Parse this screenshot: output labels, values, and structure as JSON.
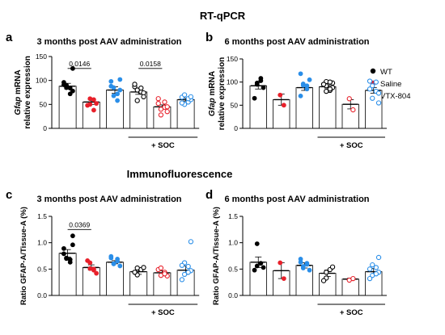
{
  "figure": {
    "title": "RT-qPCR",
    "section2_title": "Immunofluorescence",
    "legend": [
      {
        "label": "WT",
        "color": "#000000"
      },
      {
        "label": "Saline",
        "color": "#e8202a"
      },
      {
        "label": "VTX-804",
        "color": "#2a8ee8"
      }
    ],
    "soc_label": "+ SOC"
  },
  "chart_data": [
    {
      "panel": "a",
      "type": "bar",
      "title": "3 months post AAV administration",
      "ylabel_italic": "Gfap",
      "ylabel_rest": " mRNA",
      "ylabel_line2": "relative expression",
      "ylim": [
        0,
        150
      ],
      "yticks": [
        0,
        50,
        100,
        150
      ],
      "ytick_labels": [
        "0",
        "50",
        "100",
        "150"
      ],
      "annotations": [
        {
          "text": "0.0146",
          "from": 0,
          "to": 1,
          "y": 125
        },
        {
          "text": "0.0158",
          "from": 3,
          "to": 4,
          "y": 125
        }
      ],
      "bars": [
        {
          "mean": 88,
          "sem": 6,
          "group": "WT",
          "fill": false,
          "points": [
            85,
            84,
            96,
            78,
            90,
            72,
            91,
            125
          ]
        },
        {
          "mean": 55,
          "sem": 5,
          "group": "Saline",
          "fill": false,
          "points": [
            50,
            60,
            48,
            52,
            62,
            38
          ]
        },
        {
          "mean": 80,
          "sem": 7,
          "group": "VTX-804",
          "fill": false,
          "points": [
            85,
            72,
            98,
            102,
            68,
            58,
            88,
            80
          ]
        },
        {
          "mean": 76,
          "sem": 5,
          "group": "WT",
          "fill": true,
          "points": [
            58,
            76,
            87,
            74,
            80,
            84,
            92,
            66
          ]
        },
        {
          "mean": 45,
          "sem": 4,
          "group": "Saline",
          "fill": true,
          "points": [
            28,
            44,
            52,
            45,
            40,
            55,
            62,
            35
          ]
        },
        {
          "mean": 60,
          "sem": 3,
          "group": "VTX-804",
          "fill": true,
          "points": [
            50,
            55,
            65,
            60,
            70,
            62,
            53,
            66
          ]
        }
      ]
    },
    {
      "panel": "b",
      "type": "bar",
      "title": "6 months post AAV administration",
      "ylabel_italic": "Gfap",
      "ylabel_rest": " mRNA",
      "ylabel_line2": "relative expression",
      "ylim": [
        0,
        150
      ],
      "yticks": [
        0,
        50,
        100,
        150
      ],
      "ytick_labels": [
        "0",
        "50",
        "100",
        "150"
      ],
      "annotations": [],
      "bars": [
        {
          "mean": 92,
          "sem": 7,
          "group": "WT",
          "fill": false,
          "points": [
            95,
            108,
            65,
            88,
            98,
            103
          ]
        },
        {
          "mean": 62,
          "sem": 12,
          "group": "Saline",
          "fill": false,
          "points": [
            72,
            50
          ]
        },
        {
          "mean": 88,
          "sem": 6,
          "group": "VTX-804",
          "fill": false,
          "points": [
            96,
            85,
            70,
            105,
            93,
            92,
            118
          ]
        },
        {
          "mean": 90,
          "sem": 3,
          "group": "WT",
          "fill": true,
          "points": [
            101,
            82,
            95,
            88,
            92,
            85,
            95,
            98,
            80,
            100
          ]
        },
        {
          "mean": 52,
          "sem": 10,
          "group": "Saline",
          "fill": true,
          "points": [
            64,
            40
          ]
        },
        {
          "mean": 82,
          "sem": 6,
          "group": "VTX-804",
          "fill": true,
          "points": [
            92,
            100,
            85,
            55,
            65,
            80,
            102,
            76
          ]
        }
      ]
    },
    {
      "panel": "c",
      "type": "bar",
      "title": "3 months post AAV administration",
      "ylabel": "Ratio GFAP-A/Tissue-A (%)",
      "ylim": [
        0,
        1.5
      ],
      "yticks": [
        0,
        0.5,
        1.0,
        1.5
      ],
      "ytick_labels": [
        "0.0",
        "0.5",
        "1.0",
        "1.5"
      ],
      "annotations": [
        {
          "text": "0.0369",
          "from": 0,
          "to": 1,
          "y": 1.25
        }
      ],
      "bars": [
        {
          "mean": 0.8,
          "sem": 0.07,
          "group": "WT",
          "fill": false,
          "points": [
            0.71,
            0.68,
            0.79,
            1.13,
            0.7,
            0.63,
            0.89,
            0.96
          ]
        },
        {
          "mean": 0.53,
          "sem": 0.05,
          "group": "Saline",
          "fill": false,
          "points": [
            0.62,
            0.5,
            0.66,
            0.42,
            0.51,
            0.48
          ]
        },
        {
          "mean": 0.63,
          "sem": 0.03,
          "group": "VTX-804",
          "fill": false,
          "points": [
            0.6,
            0.69,
            0.71,
            0.56,
            0.6,
            0.65,
            0.74
          ]
        },
        {
          "mean": 0.45,
          "sem": 0.05,
          "group": "WT",
          "fill": true,
          "points": [
            0.39,
            0.49,
            0.44,
            0.53,
            0.52
          ]
        },
        {
          "mean": 0.43,
          "sem": 0.04,
          "group": "Saline",
          "fill": true,
          "points": [
            0.38,
            0.44,
            0.49,
            0.37,
            0.52,
            0.41
          ]
        },
        {
          "mean": 0.48,
          "sem": 0.08,
          "group": "VTX-804",
          "fill": true,
          "points": [
            0.4,
            0.55,
            0.3,
            0.47,
            0.62,
            0.44,
            0.57,
            1.02
          ]
        }
      ]
    },
    {
      "panel": "d",
      "type": "bar",
      "title": "6 months post AAV administration",
      "ylabel": "Ratio GFAP-A/Tissue-A (%)",
      "ylim": [
        0,
        1.5
      ],
      "yticks": [
        0,
        0.5,
        1.0,
        1.5
      ],
      "ytick_labels": [
        "0.0",
        "0.5",
        "1.0",
        "1.5"
      ],
      "annotations": [],
      "bars": [
        {
          "mean": 0.63,
          "sem": 0.1,
          "group": "WT",
          "fill": false,
          "points": [
            0.56,
            0.61,
            0.48,
            0.53,
            0.98
          ]
        },
        {
          "mean": 0.47,
          "sem": 0.15,
          "group": "Saline",
          "fill": false,
          "points": [
            0.62,
            0.32
          ]
        },
        {
          "mean": 0.57,
          "sem": 0.05,
          "group": "VTX-804",
          "fill": false,
          "points": [
            0.52,
            0.61,
            0.69,
            0.48,
            0.55,
            0.59,
            0.63
          ]
        },
        {
          "mean": 0.42,
          "sem": 0.06,
          "group": "WT",
          "fill": true,
          "points": [
            0.33,
            0.49,
            0.28,
            0.54,
            0.44
          ]
        },
        {
          "mean": 0.31,
          "sem": 0.02,
          "group": "Saline",
          "fill": true,
          "points": [
            0.29,
            0.32
          ]
        },
        {
          "mean": 0.45,
          "sem": 0.06,
          "group": "VTX-804",
          "fill": true,
          "points": [
            0.38,
            0.53,
            0.32,
            0.44,
            0.58,
            0.41,
            0.5,
            0.72
          ]
        }
      ]
    }
  ]
}
